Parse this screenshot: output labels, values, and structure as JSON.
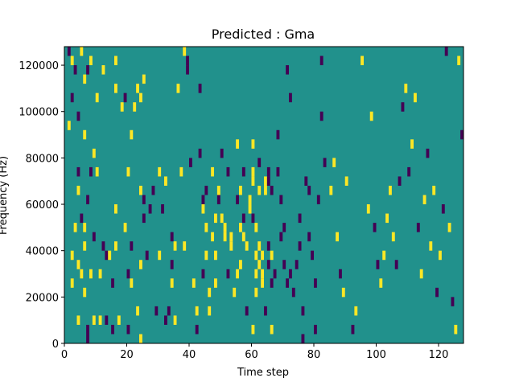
{
  "chart_data": {
    "type": "heatmap",
    "title": "Predicted : Gma",
    "xlabel": "Time step",
    "ylabel": "Frequency (Hz)",
    "xlim": [
      0,
      128
    ],
    "ylim": [
      0,
      128000
    ],
    "xticks": [
      0,
      20,
      40,
      60,
      80,
      100,
      120
    ],
    "xtick_labels": [
      "0",
      "20",
      "40",
      "60",
      "80",
      "100",
      "120"
    ],
    "yticks": [
      0,
      20000,
      40000,
      60000,
      80000,
      100000,
      120000
    ],
    "ytick_labels": [
      "0",
      "20000",
      "40000",
      "60000",
      "80000",
      "100000",
      "120000"
    ],
    "colormap": "viridis",
    "grid": false,
    "colors": {
      "background": "#21918c",
      "high": "#fde725",
      "low": "#440154"
    },
    "bin_hz": 4000,
    "cells": [
      {
        "t": 1,
        "f": 124000,
        "v": "low"
      },
      {
        "t": 2,
        "f": 120000,
        "v": "high"
      },
      {
        "t": 2,
        "f": 104000,
        "v": "low"
      },
      {
        "t": 1,
        "f": 92000,
        "v": "high"
      },
      {
        "t": 3,
        "f": 116000,
        "v": "low"
      },
      {
        "t": 5,
        "f": 124000,
        "v": "high"
      },
      {
        "t": 6,
        "f": 112000,
        "v": "high"
      },
      {
        "t": 7,
        "f": 116000,
        "v": "low"
      },
      {
        "t": 8,
        "f": 120000,
        "v": "high"
      },
      {
        "t": 4,
        "f": 96000,
        "v": "low"
      },
      {
        "t": 6,
        "f": 88000,
        "v": "high"
      },
      {
        "t": 10,
        "f": 104000,
        "v": "high"
      },
      {
        "t": 12,
        "f": 116000,
        "v": "high"
      },
      {
        "t": 9,
        "f": 80000,
        "v": "high"
      },
      {
        "t": 4,
        "f": 72000,
        "v": "low"
      },
      {
        "t": 8,
        "f": 72000,
        "v": "low"
      },
      {
        "t": 10,
        "f": 72000,
        "v": "high"
      },
      {
        "t": 4,
        "f": 64000,
        "v": "high"
      },
      {
        "t": 7,
        "f": 60000,
        "v": "low"
      },
      {
        "t": 5,
        "f": 52000,
        "v": "low"
      },
      {
        "t": 3,
        "f": 48000,
        "v": "high"
      },
      {
        "t": 6,
        "f": 48000,
        "v": "high"
      },
      {
        "t": 9,
        "f": 44000,
        "v": "low"
      },
      {
        "t": 6,
        "f": 40000,
        "v": "high"
      },
      {
        "t": 2,
        "f": 36000,
        "v": "high"
      },
      {
        "t": 4,
        "f": 32000,
        "v": "high"
      },
      {
        "t": 5,
        "f": 28000,
        "v": "high"
      },
      {
        "t": 8,
        "f": 28000,
        "v": "high"
      },
      {
        "t": 2,
        "f": 24000,
        "v": "high"
      },
      {
        "t": 6,
        "f": 20000,
        "v": "high"
      },
      {
        "t": 4,
        "f": 8000,
        "v": "high"
      },
      {
        "t": 7,
        "f": 4000,
        "v": "low"
      },
      {
        "t": 7,
        "f": 0,
        "v": "low"
      },
      {
        "t": 9,
        "f": 8000,
        "v": "high"
      },
      {
        "t": 11,
        "f": 8000,
        "v": "high"
      },
      {
        "t": 11,
        "f": 28000,
        "v": "high"
      },
      {
        "t": 12,
        "f": 40000,
        "v": "low"
      },
      {
        "t": 13,
        "f": 36000,
        "v": "low"
      },
      {
        "t": 14,
        "f": 36000,
        "v": "high"
      },
      {
        "t": 16,
        "f": 40000,
        "v": "high"
      },
      {
        "t": 15,
        "f": 24000,
        "v": "low"
      },
      {
        "t": 13,
        "f": 8000,
        "v": "low"
      },
      {
        "t": 15,
        "f": 4000,
        "v": "low"
      },
      {
        "t": 17,
        "f": 8000,
        "v": "high"
      },
      {
        "t": 16,
        "f": 56000,
        "v": "high"
      },
      {
        "t": 19,
        "f": 48000,
        "v": "high"
      },
      {
        "t": 16,
        "f": 108000,
        "v": "high"
      },
      {
        "t": 16,
        "f": 120000,
        "v": "high"
      },
      {
        "t": 18,
        "f": 100000,
        "v": "high"
      },
      {
        "t": 19,
        "f": 104000,
        "v": "low"
      },
      {
        "t": 20,
        "f": 72000,
        "v": "high"
      },
      {
        "t": 21,
        "f": 88000,
        "v": "high"
      },
      {
        "t": 21,
        "f": 40000,
        "v": "low"
      },
      {
        "t": 20,
        "f": 28000,
        "v": "low"
      },
      {
        "t": 21,
        "f": 24000,
        "v": "high"
      },
      {
        "t": 20,
        "f": 4000,
        "v": "low"
      },
      {
        "t": 22,
        "f": 100000,
        "v": "high"
      },
      {
        "t": 24,
        "f": 104000,
        "v": "high"
      },
      {
        "t": 23,
        "f": 108000,
        "v": "high"
      },
      {
        "t": 25,
        "f": 112000,
        "v": "high"
      },
      {
        "t": 25,
        "f": 60000,
        "v": "low"
      },
      {
        "t": 24,
        "f": 64000,
        "v": "high"
      },
      {
        "t": 25,
        "f": 52000,
        "v": "low"
      },
      {
        "t": 24,
        "f": 32000,
        "v": "high"
      },
      {
        "t": 23,
        "f": 12000,
        "v": "high"
      },
      {
        "t": 24,
        "f": 0,
        "v": "high"
      },
      {
        "t": 26,
        "f": 36000,
        "v": "low"
      },
      {
        "t": 27,
        "f": 56000,
        "v": "low"
      },
      {
        "t": 28,
        "f": 64000,
        "v": "low"
      },
      {
        "t": 29,
        "f": 12000,
        "v": "low"
      },
      {
        "t": 30,
        "f": 36000,
        "v": "high"
      },
      {
        "t": 31,
        "f": 56000,
        "v": "low"
      },
      {
        "t": 30,
        "f": 72000,
        "v": "high"
      },
      {
        "t": 32,
        "f": 68000,
        "v": "high"
      },
      {
        "t": 32,
        "f": 8000,
        "v": "low"
      },
      {
        "t": 33,
        "f": 12000,
        "v": "low"
      },
      {
        "t": 34,
        "f": 44000,
        "v": "low"
      },
      {
        "t": 35,
        "f": 40000,
        "v": "high"
      },
      {
        "t": 34,
        "f": 24000,
        "v": "high"
      },
      {
        "t": 34,
        "f": 32000,
        "v": "low"
      },
      {
        "t": 35,
        "f": 8000,
        "v": "high"
      },
      {
        "t": 36,
        "f": 108000,
        "v": "high"
      },
      {
        "t": 37,
        "f": 72000,
        "v": "high"
      },
      {
        "t": 38,
        "f": 40000,
        "v": "high"
      },
      {
        "t": 38,
        "f": 124000,
        "v": "high"
      },
      {
        "t": 39,
        "f": 116000,
        "v": "low"
      },
      {
        "t": 39,
        "f": 120000,
        "v": "low"
      },
      {
        "t": 40,
        "f": 76000,
        "v": "low"
      },
      {
        "t": 41,
        "f": 24000,
        "v": "high"
      },
      {
        "t": 42,
        "f": 12000,
        "v": "high"
      },
      {
        "t": 42,
        "f": 4000,
        "v": "low"
      },
      {
        "t": 43,
        "f": 108000,
        "v": "low"
      },
      {
        "t": 43,
        "f": 80000,
        "v": "low"
      },
      {
        "t": 44,
        "f": 60000,
        "v": "low"
      },
      {
        "t": 45,
        "f": 64000,
        "v": "low"
      },
      {
        "t": 44,
        "f": 56000,
        "v": "high"
      },
      {
        "t": 45,
        "f": 48000,
        "v": "high"
      },
      {
        "t": 45,
        "f": 36000,
        "v": "high"
      },
      {
        "t": 44,
        "f": 28000,
        "v": "low"
      },
      {
        "t": 46,
        "f": 20000,
        "v": "high"
      },
      {
        "t": 46,
        "f": 12000,
        "v": "high"
      },
      {
        "t": 47,
        "f": 44000,
        "v": "high"
      },
      {
        "t": 48,
        "f": 52000,
        "v": "high"
      },
      {
        "t": 48,
        "f": 36000,
        "v": "high"
      },
      {
        "t": 49,
        "f": 64000,
        "v": "high"
      },
      {
        "t": 47,
        "f": 72000,
        "v": "high"
      },
      {
        "t": 48,
        "f": 24000,
        "v": "high"
      },
      {
        "t": 49,
        "f": 60000,
        "v": "low"
      },
      {
        "t": 50,
        "f": 80000,
        "v": "low"
      },
      {
        "t": 50,
        "f": 52000,
        "v": "high"
      },
      {
        "t": 51,
        "f": 48000,
        "v": "high"
      },
      {
        "t": 51,
        "f": 44000,
        "v": "high"
      },
      {
        "t": 52,
        "f": 72000,
        "v": "low"
      },
      {
        "t": 52,
        "f": 28000,
        "v": "low"
      },
      {
        "t": 53,
        "f": 44000,
        "v": "high"
      },
      {
        "t": 53,
        "f": 40000,
        "v": "high"
      },
      {
        "t": 54,
        "f": 20000,
        "v": "high"
      },
      {
        "t": 55,
        "f": 84000,
        "v": "high"
      },
      {
        "t": 56,
        "f": 64000,
        "v": "high"
      },
      {
        "t": 55,
        "f": 60000,
        "v": "low"
      },
      {
        "t": 56,
        "f": 48000,
        "v": "high"
      },
      {
        "t": 56,
        "f": 32000,
        "v": "high"
      },
      {
        "t": 55,
        "f": 28000,
        "v": "high"
      },
      {
        "t": 57,
        "f": 72000,
        "v": "low"
      },
      {
        "t": 57,
        "f": 52000,
        "v": "low"
      },
      {
        "t": 57,
        "f": 44000,
        "v": "high"
      },
      {
        "t": 58,
        "f": 40000,
        "v": "high"
      },
      {
        "t": 58,
        "f": 12000,
        "v": "low"
      },
      {
        "t": 59,
        "f": 60000,
        "v": "high"
      },
      {
        "t": 59,
        "f": 56000,
        "v": "high"
      },
      {
        "t": 60,
        "f": 84000,
        "v": "high"
      },
      {
        "t": 60,
        "f": 72000,
        "v": "high"
      },
      {
        "t": 60,
        "f": 68000,
        "v": "high"
      },
      {
        "t": 60,
        "f": 52000,
        "v": "low"
      },
      {
        "t": 61,
        "f": 48000,
        "v": "high"
      },
      {
        "t": 61,
        "f": 36000,
        "v": "high"
      },
      {
        "t": 61,
        "f": 28000,
        "v": "high"
      },
      {
        "t": 61,
        "f": 20000,
        "v": "high"
      },
      {
        "t": 60,
        "f": 4000,
        "v": "high"
      },
      {
        "t": 62,
        "f": 76000,
        "v": "low"
      },
      {
        "t": 62,
        "f": 64000,
        "v": "high"
      },
      {
        "t": 62,
        "f": 40000,
        "v": "high"
      },
      {
        "t": 62,
        "f": 32000,
        "v": "high"
      },
      {
        "t": 63,
        "f": 36000,
        "v": "high"
      },
      {
        "t": 63,
        "f": 28000,
        "v": "high"
      },
      {
        "t": 63,
        "f": 24000,
        "v": "high"
      },
      {
        "t": 64,
        "f": 68000,
        "v": "high"
      },
      {
        "t": 64,
        "f": 64000,
        "v": "high"
      },
      {
        "t": 64,
        "f": 12000,
        "v": "low"
      },
      {
        "t": 65,
        "f": 72000,
        "v": "low"
      },
      {
        "t": 65,
        "f": 68000,
        "v": "low"
      },
      {
        "t": 65,
        "f": 40000,
        "v": "low"
      },
      {
        "t": 65,
        "f": 32000,
        "v": "low"
      },
      {
        "t": 66,
        "f": 64000,
        "v": "low"
      },
      {
        "t": 66,
        "f": 36000,
        "v": "high"
      },
      {
        "t": 66,
        "f": 24000,
        "v": "low"
      },
      {
        "t": 66,
        "f": 4000,
        "v": "high"
      },
      {
        "t": 67,
        "f": 28000,
        "v": "low"
      },
      {
        "t": 68,
        "f": 88000,
        "v": "low"
      },
      {
        "t": 68,
        "f": 72000,
        "v": "low"
      },
      {
        "t": 69,
        "f": 60000,
        "v": "low"
      },
      {
        "t": 69,
        "f": 44000,
        "v": "low"
      },
      {
        "t": 70,
        "f": 48000,
        "v": "low"
      },
      {
        "t": 70,
        "f": 32000,
        "v": "low"
      },
      {
        "t": 71,
        "f": 116000,
        "v": "low"
      },
      {
        "t": 72,
        "f": 104000,
        "v": "low"
      },
      {
        "t": 71,
        "f": 24000,
        "v": "low"
      },
      {
        "t": 72,
        "f": 28000,
        "v": "low"
      },
      {
        "t": 73,
        "f": 20000,
        "v": "low"
      },
      {
        "t": 74,
        "f": 32000,
        "v": "low"
      },
      {
        "t": 75,
        "f": 40000,
        "v": "low"
      },
      {
        "t": 75,
        "f": 52000,
        "v": "low"
      },
      {
        "t": 76,
        "f": 0,
        "v": "low"
      },
      {
        "t": 76,
        "f": 12000,
        "v": "low"
      },
      {
        "t": 77,
        "f": 68000,
        "v": "low"
      },
      {
        "t": 78,
        "f": 64000,
        "v": "low"
      },
      {
        "t": 78,
        "f": 44000,
        "v": "low"
      },
      {
        "t": 79,
        "f": 36000,
        "v": "low"
      },
      {
        "t": 80,
        "f": 24000,
        "v": "low"
      },
      {
        "t": 80,
        "f": 4000,
        "v": "low"
      },
      {
        "t": 81,
        "f": 60000,
        "v": "low"
      },
      {
        "t": 82,
        "f": 96000,
        "v": "low"
      },
      {
        "t": 82,
        "f": 120000,
        "v": "low"
      },
      {
        "t": 83,
        "f": 76000,
        "v": "low"
      },
      {
        "t": 85,
        "f": 64000,
        "v": "high"
      },
      {
        "t": 86,
        "f": 76000,
        "v": "high"
      },
      {
        "t": 87,
        "f": 44000,
        "v": "high"
      },
      {
        "t": 88,
        "f": 28000,
        "v": "low"
      },
      {
        "t": 89,
        "f": 20000,
        "v": "high"
      },
      {
        "t": 90,
        "f": 68000,
        "v": "high"
      },
      {
        "t": 92,
        "f": 4000,
        "v": "low"
      },
      {
        "t": 93,
        "f": 12000,
        "v": "high"
      },
      {
        "t": 95,
        "f": 120000,
        "v": "high"
      },
      {
        "t": 97,
        "f": 56000,
        "v": "high"
      },
      {
        "t": 98,
        "f": 96000,
        "v": "high"
      },
      {
        "t": 99,
        "f": 48000,
        "v": "low"
      },
      {
        "t": 100,
        "f": 32000,
        "v": "low"
      },
      {
        "t": 101,
        "f": 24000,
        "v": "high"
      },
      {
        "t": 102,
        "f": 36000,
        "v": "high"
      },
      {
        "t": 103,
        "f": 52000,
        "v": "high"
      },
      {
        "t": 104,
        "f": 64000,
        "v": "high"
      },
      {
        "t": 105,
        "f": 44000,
        "v": "high"
      },
      {
        "t": 106,
        "f": 32000,
        "v": "low"
      },
      {
        "t": 107,
        "f": 68000,
        "v": "low"
      },
      {
        "t": 108,
        "f": 100000,
        "v": "low"
      },
      {
        "t": 109,
        "f": 108000,
        "v": "high"
      },
      {
        "t": 110,
        "f": 72000,
        "v": "low"
      },
      {
        "t": 111,
        "f": 84000,
        "v": "high"
      },
      {
        "t": 112,
        "f": 104000,
        "v": "high"
      },
      {
        "t": 113,
        "f": 48000,
        "v": "low"
      },
      {
        "t": 114,
        "f": 28000,
        "v": "high"
      },
      {
        "t": 115,
        "f": 60000,
        "v": "high"
      },
      {
        "t": 116,
        "f": 80000,
        "v": "low"
      },
      {
        "t": 117,
        "f": 40000,
        "v": "high"
      },
      {
        "t": 118,
        "f": 64000,
        "v": "high"
      },
      {
        "t": 119,
        "f": 20000,
        "v": "low"
      },
      {
        "t": 120,
        "f": 36000,
        "v": "high"
      },
      {
        "t": 121,
        "f": 56000,
        "v": "low"
      },
      {
        "t": 122,
        "f": 124000,
        "v": "low"
      },
      {
        "t": 123,
        "f": 48000,
        "v": "high"
      },
      {
        "t": 124,
        "f": 16000,
        "v": "low"
      },
      {
        "t": 125,
        "f": 4000,
        "v": "high"
      },
      {
        "t": 126,
        "f": 120000,
        "v": "high"
      },
      {
        "t": 127,
        "f": 88000,
        "v": "low"
      }
    ]
  }
}
